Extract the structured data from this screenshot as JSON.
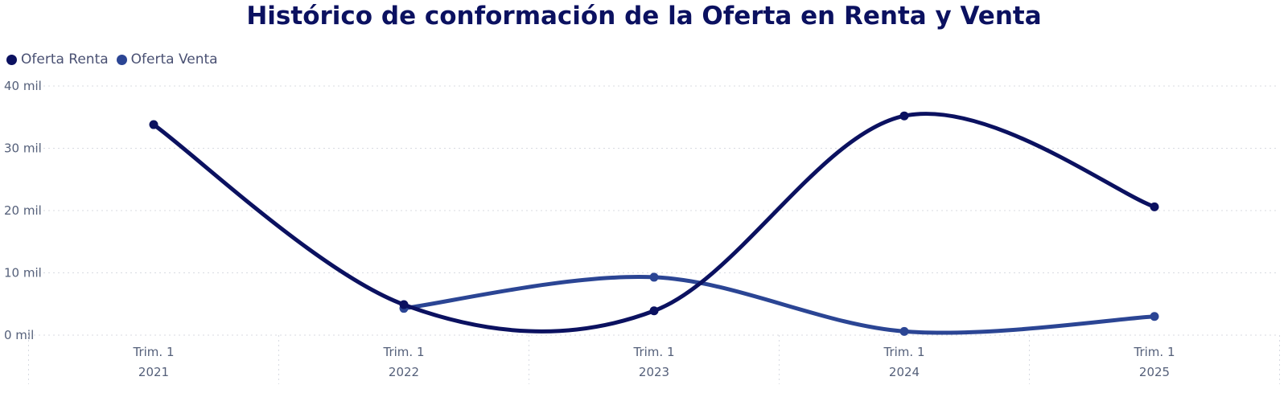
{
  "chart_data": {
    "type": "line",
    "title": "Histórico de conformación de la Oferta en Renta y Venta",
    "categories": [
      {
        "line1": "Trim. 1",
        "line2": "2021"
      },
      {
        "line1": "Trim. 1",
        "line2": "2022"
      },
      {
        "line1": "Trim. 1",
        "line2": "2023"
      },
      {
        "line1": "Trim. 1",
        "line2": "2024"
      },
      {
        "line1": "Trim. 1",
        "line2": "2025"
      }
    ],
    "series": [
      {
        "name": "Oferta Renta",
        "color": "#0b1160",
        "values": [
          33800,
          4900,
          3900,
          35200,
          20600
        ]
      },
      {
        "name": "Oferta Venta",
        "color": "#2b4594",
        "values": [
          null,
          4300,
          9300,
          600,
          3000
        ]
      }
    ],
    "yticks": [
      {
        "value": 0,
        "label": "0 mil"
      },
      {
        "value": 10000,
        "label": "10 mil"
      },
      {
        "value": 20000,
        "label": "20 mil"
      },
      {
        "value": 30000,
        "label": "30 mil"
      },
      {
        "value": 40000,
        "label": "40 mil"
      }
    ],
    "ylim": [
      0,
      40000
    ],
    "grid": true,
    "legend_position": "top-left"
  }
}
